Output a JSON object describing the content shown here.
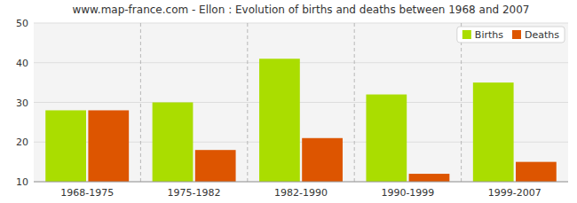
{
  "chart_data": {
    "type": "bar",
    "title": "www.map-france.com - Ellon : Evolution of births and deaths between 1968 and 2007",
    "categories": [
      "1968-1975",
      "1975-1982",
      "1982-1990",
      "1990-1999",
      "1999-2007"
    ],
    "series": [
      {
        "name": "Births",
        "color": "#aadd00",
        "values": [
          28,
          30,
          41,
          32,
          35
        ]
      },
      {
        "name": "Deaths",
        "color": "#dd5500",
        "values": [
          28,
          18,
          21,
          12,
          15
        ]
      }
    ],
    "ylim": [
      10,
      50
    ],
    "yticks": [
      10,
      20,
      30,
      40,
      50
    ],
    "grid": true,
    "legend": "upper-right"
  }
}
